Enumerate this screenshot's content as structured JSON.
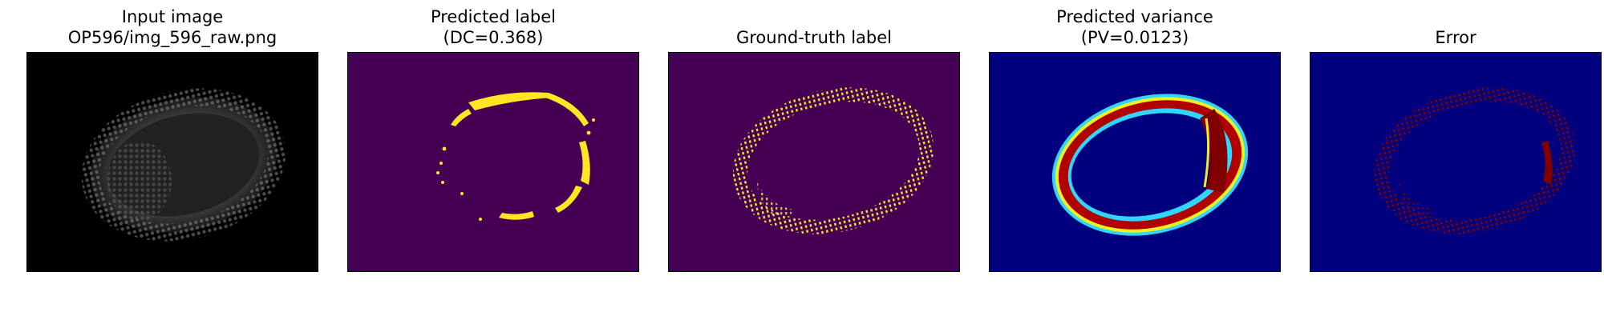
{
  "panels": [
    {
      "name": "input-image",
      "title_lines": [
        "Input image",
        "OP596/img_596_raw.png"
      ],
      "colormap": "gray"
    },
    {
      "name": "predicted-label",
      "title_lines": [
        "Predicted label",
        "(DC=0.368)"
      ],
      "colormap": "viridis"
    },
    {
      "name": "ground-truth-label",
      "title_lines": [
        "",
        "Ground-truth label"
      ],
      "colormap": "viridis"
    },
    {
      "name": "predicted-variance",
      "title_lines": [
        "Predicted variance",
        "(PV=0.0123)"
      ],
      "colormap": "jet"
    },
    {
      "name": "error",
      "title_lines": [
        "",
        "Error"
      ],
      "colormap": "jet"
    }
  ],
  "colors": {
    "gray_background": "#000000",
    "viridis_low": "#440154",
    "viridis_high": "#fde725",
    "jet_low": "#00007f",
    "jet_mid_cyan": "#2fd6ff",
    "jet_mid_yellow": "#f0f020",
    "jet_high": "#800000"
  }
}
